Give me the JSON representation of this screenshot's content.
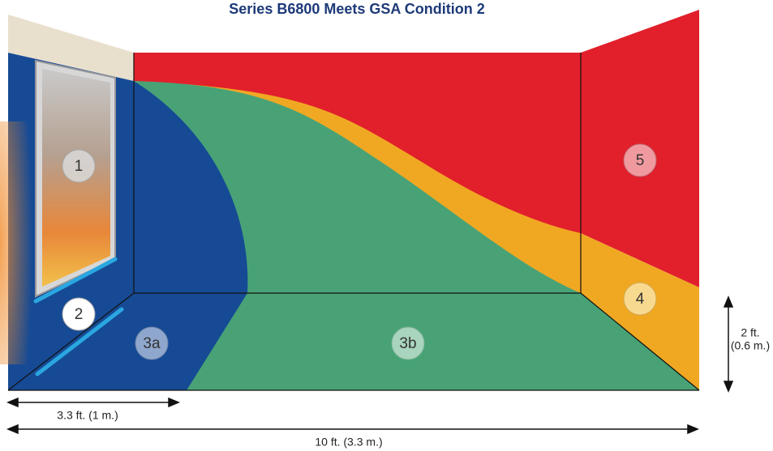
{
  "title": "Series B6800 Meets GSA Condition 2",
  "zones": [
    "1",
    "2",
    "3a",
    "3b",
    "4",
    "5"
  ],
  "dimensions": {
    "width_left": "3.3 ft. (1 m.)",
    "width_total": "10 ft. (3.3 m.)",
    "height_line1": "2 ft.",
    "height_line2": "(0.6 m.)"
  }
}
